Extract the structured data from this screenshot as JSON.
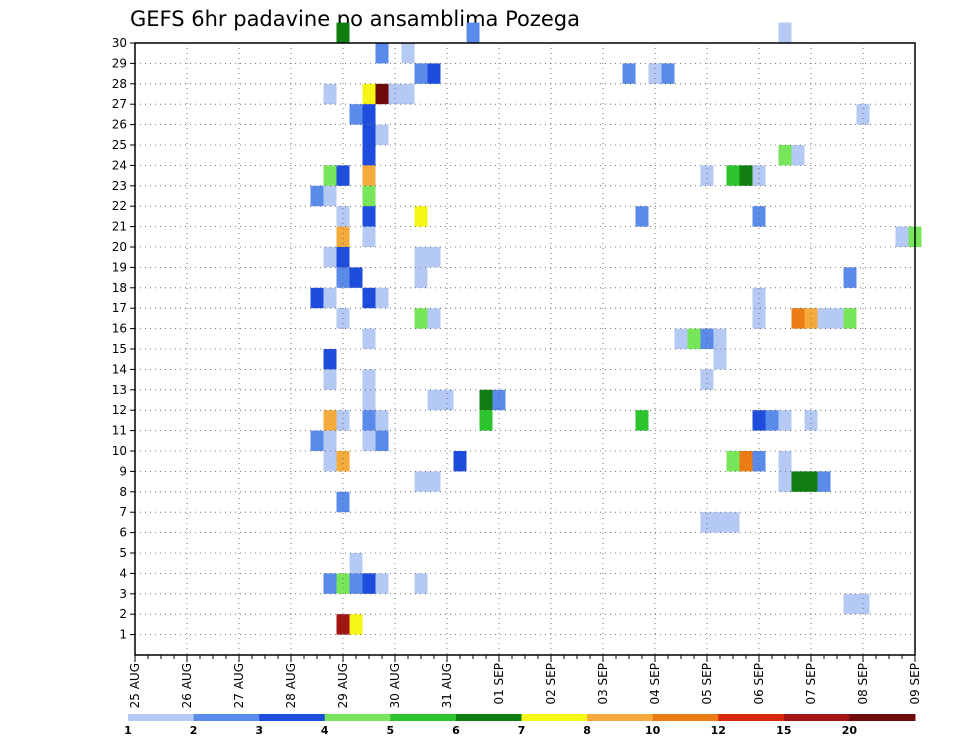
{
  "chart_data": {
    "type": "heatmap",
    "title": "GEFS 6hr padavine po ansamblima Pozega",
    "x_tick_labels": [
      "25 AUG",
      "26 AUG",
      "27 AUG",
      "28 AUG",
      "29 AUG",
      "30 AUG",
      "31 AUG",
      "01 SEP",
      "02 SEP",
      "03 SEP",
      "04 SEP",
      "05 SEP",
      "06 SEP",
      "07 SEP",
      "08 SEP",
      "09 SEP"
    ],
    "x_range_steps": [
      0,
      60
    ],
    "y_tick_labels": [
      "1",
      "2",
      "3",
      "4",
      "5",
      "6",
      "7",
      "8",
      "9",
      "10",
      "11",
      "12",
      "13",
      "14",
      "15",
      "16",
      "17",
      "18",
      "19",
      "20",
      "21",
      "22",
      "23",
      "24",
      "25",
      "26",
      "27",
      "28",
      "29",
      "30"
    ],
    "y_range": [
      0,
      30
    ],
    "grid": true,
    "levels": [
      1,
      2,
      3,
      4,
      5,
      6,
      7,
      8,
      10,
      12,
      15,
      20
    ],
    "level_labels": [
      "1",
      "2",
      "3",
      "4",
      "5",
      "6",
      "7",
      "8",
      "10",
      "12",
      "15",
      "20"
    ],
    "colors": [
      "#b5c9f5",
      "#5a8aea",
      "#1e4cdc",
      "#78e65a",
      "#2dc32d",
      "#0f7d0f",
      "#f5f516",
      "#f5aa3c",
      "#eb7b14",
      "#d7280f",
      "#a01414",
      "#6e0a0a"
    ],
    "cells": [
      {
        "step": 16,
        "member": 30,
        "level": 6
      },
      {
        "step": 26,
        "member": 30,
        "level": 2
      },
      {
        "step": 50,
        "member": 30,
        "level": 1
      },
      {
        "step": 19,
        "member": 29,
        "level": 2
      },
      {
        "step": 21,
        "member": 29,
        "level": 1
      },
      {
        "step": 22,
        "member": 28,
        "level": 2
      },
      {
        "step": 23,
        "member": 28,
        "level": 3
      },
      {
        "step": 38,
        "member": 28,
        "level": 2
      },
      {
        "step": 40,
        "member": 28,
        "level": 1
      },
      {
        "step": 41,
        "member": 28,
        "level": 2
      },
      {
        "step": 15,
        "member": 27,
        "level": 1
      },
      {
        "step": 18,
        "member": 27,
        "level": 7
      },
      {
        "step": 19,
        "member": 27,
        "level": 12
      },
      {
        "step": 20,
        "member": 27,
        "level": 1
      },
      {
        "step": 21,
        "member": 27,
        "level": 1
      },
      {
        "step": 17,
        "member": 26,
        "level": 2
      },
      {
        "step": 18,
        "member": 26,
        "level": 3
      },
      {
        "step": 56,
        "member": 26,
        "level": 1
      },
      {
        "step": 18,
        "member": 25,
        "level": 3
      },
      {
        "step": 19,
        "member": 25,
        "level": 1
      },
      {
        "step": 18,
        "member": 24,
        "level": 3
      },
      {
        "step": 50,
        "member": 24,
        "level": 4
      },
      {
        "step": 51,
        "member": 24,
        "level": 1
      },
      {
        "step": 15,
        "member": 23,
        "level": 4
      },
      {
        "step": 16,
        "member": 23,
        "level": 3
      },
      {
        "step": 18,
        "member": 23,
        "level": 8
      },
      {
        "step": 44,
        "member": 23,
        "level": 1
      },
      {
        "step": 46,
        "member": 23,
        "level": 5
      },
      {
        "step": 47,
        "member": 23,
        "level": 6
      },
      {
        "step": 48,
        "member": 23,
        "level": 1
      },
      {
        "step": 14,
        "member": 22,
        "level": 2
      },
      {
        "step": 15,
        "member": 22,
        "level": 1
      },
      {
        "step": 18,
        "member": 22,
        "level": 4
      },
      {
        "step": 16,
        "member": 21,
        "level": 1
      },
      {
        "step": 18,
        "member": 21,
        "level": 3
      },
      {
        "step": 22,
        "member": 21,
        "level": 7
      },
      {
        "step": 39,
        "member": 21,
        "level": 2
      },
      {
        "step": 48,
        "member": 21,
        "level": 2
      },
      {
        "step": 16,
        "member": 20,
        "level": 8
      },
      {
        "step": 18,
        "member": 20,
        "level": 1
      },
      {
        "step": 59,
        "member": 20,
        "level": 1
      },
      {
        "step": 60,
        "member": 20,
        "level": 4
      },
      {
        "step": 15,
        "member": 19,
        "level": 1
      },
      {
        "step": 16,
        "member": 19,
        "level": 3
      },
      {
        "step": 22,
        "member": 19,
        "level": 1
      },
      {
        "step": 23,
        "member": 19,
        "level": 1
      },
      {
        "step": 16,
        "member": 18,
        "level": 2
      },
      {
        "step": 17,
        "member": 18,
        "level": 3
      },
      {
        "step": 22,
        "member": 18,
        "level": 1
      },
      {
        "step": 55,
        "member": 18,
        "level": 2
      },
      {
        "step": 14,
        "member": 17,
        "level": 3
      },
      {
        "step": 15,
        "member": 17,
        "level": 1
      },
      {
        "step": 18,
        "member": 17,
        "level": 3
      },
      {
        "step": 19,
        "member": 17,
        "level": 1
      },
      {
        "step": 48,
        "member": 17,
        "level": 1
      },
      {
        "step": 16,
        "member": 16,
        "level": 1
      },
      {
        "step": 22,
        "member": 16,
        "level": 4
      },
      {
        "step": 23,
        "member": 16,
        "level": 1
      },
      {
        "step": 48,
        "member": 16,
        "level": 1
      },
      {
        "step": 51,
        "member": 16,
        "level": 9
      },
      {
        "step": 52,
        "member": 16,
        "level": 8
      },
      {
        "step": 53,
        "member": 16,
        "level": 1
      },
      {
        "step": 54,
        "member": 16,
        "level": 1
      },
      {
        "step": 55,
        "member": 16,
        "level": 4
      },
      {
        "step": 18,
        "member": 15,
        "level": 1
      },
      {
        "step": 42,
        "member": 15,
        "level": 1
      },
      {
        "step": 43,
        "member": 15,
        "level": 4
      },
      {
        "step": 44,
        "member": 15,
        "level": 2
      },
      {
        "step": 45,
        "member": 15,
        "level": 1
      },
      {
        "step": 15,
        "member": 14,
        "level": 3
      },
      {
        "step": 45,
        "member": 14,
        "level": 1
      },
      {
        "step": 15,
        "member": 13,
        "level": 1
      },
      {
        "step": 18,
        "member": 13,
        "level": 1
      },
      {
        "step": 44,
        "member": 13,
        "level": 1
      },
      {
        "step": 18,
        "member": 12,
        "level": 1
      },
      {
        "step": 23,
        "member": 12,
        "level": 1
      },
      {
        "step": 24,
        "member": 12,
        "level": 1
      },
      {
        "step": 27,
        "member": 12,
        "level": 6
      },
      {
        "step": 28,
        "member": 12,
        "level": 2
      },
      {
        "step": 15,
        "member": 11,
        "level": 8
      },
      {
        "step": 16,
        "member": 11,
        "level": 1
      },
      {
        "step": 18,
        "member": 11,
        "level": 2
      },
      {
        "step": 19,
        "member": 11,
        "level": 1
      },
      {
        "step": 27,
        "member": 11,
        "level": 5
      },
      {
        "step": 39,
        "member": 11,
        "level": 5
      },
      {
        "step": 48,
        "member": 11,
        "level": 3
      },
      {
        "step": 49,
        "member": 11,
        "level": 2
      },
      {
        "step": 50,
        "member": 11,
        "level": 1
      },
      {
        "step": 52,
        "member": 11,
        "level": 1
      },
      {
        "step": 14,
        "member": 10,
        "level": 2
      },
      {
        "step": 15,
        "member": 10,
        "level": 1
      },
      {
        "step": 18,
        "member": 10,
        "level": 1
      },
      {
        "step": 19,
        "member": 10,
        "level": 2
      },
      {
        "step": 15,
        "member": 9,
        "level": 1
      },
      {
        "step": 16,
        "member": 9,
        "level": 8
      },
      {
        "step": 25,
        "member": 9,
        "level": 3
      },
      {
        "step": 46,
        "member": 9,
        "level": 4
      },
      {
        "step": 47,
        "member": 9,
        "level": 9
      },
      {
        "step": 48,
        "member": 9,
        "level": 2
      },
      {
        "step": 50,
        "member": 9,
        "level": 1
      },
      {
        "step": 22,
        "member": 8,
        "level": 1
      },
      {
        "step": 23,
        "member": 8,
        "level": 1
      },
      {
        "step": 50,
        "member": 8,
        "level": 1
      },
      {
        "step": 51,
        "member": 8,
        "level": 6
      },
      {
        "step": 52,
        "member": 8,
        "level": 6
      },
      {
        "step": 53,
        "member": 8,
        "level": 2
      },
      {
        "step": 16,
        "member": 7,
        "level": 2
      },
      {
        "step": 44,
        "member": 6,
        "level": 1
      },
      {
        "step": 45,
        "member": 6,
        "level": 1
      },
      {
        "step": 46,
        "member": 6,
        "level": 1
      },
      {
        "step": 17,
        "member": 4,
        "level": 1
      },
      {
        "step": 15,
        "member": 3,
        "level": 2
      },
      {
        "step": 16,
        "member": 3,
        "level": 4
      },
      {
        "step": 17,
        "member": 3,
        "level": 2
      },
      {
        "step": 18,
        "member": 3,
        "level": 3
      },
      {
        "step": 19,
        "member": 3,
        "level": 1
      },
      {
        "step": 22,
        "member": 3,
        "level": 1
      },
      {
        "step": 55,
        "member": 2,
        "level": 1
      },
      {
        "step": 56,
        "member": 2,
        "level": 1
      },
      {
        "step": 16,
        "member": 1,
        "level": 11
      },
      {
        "step": 17,
        "member": 1,
        "level": 7
      }
    ]
  }
}
